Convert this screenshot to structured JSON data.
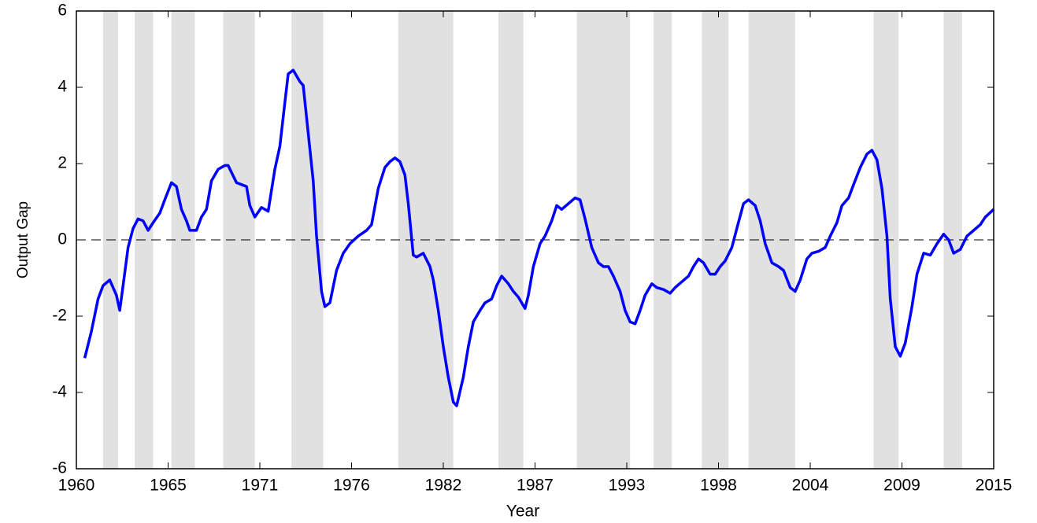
{
  "chart_data": {
    "type": "line",
    "x_label": "Year",
    "y_label": "Output Gap",
    "xlim": [
      1960,
      2015
    ],
    "ylim": [
      -6,
      6
    ],
    "xticks": [
      1960,
      {
        "value": 1965.5,
        "label": "1965"
      },
      1971,
      {
        "value": 1976.5,
        "label": "1976"
      },
      1982,
      {
        "value": 1987.5,
        "label": "1987"
      },
      1993,
      {
        "value": 1998.5,
        "label": "1998"
      },
      2004,
      {
        "value": 2009.5,
        "label": "2009"
      },
      2015
    ],
    "yticks": [
      -6,
      -4,
      -2,
      0,
      2,
      4,
      6
    ],
    "reference_line": 0,
    "shade_color": "#e1e1e1",
    "shaded_periods": [
      [
        1961.6,
        1962.5
      ],
      [
        1963.5,
        1964.6
      ],
      [
        1965.7,
        1967.1
      ],
      [
        1968.8,
        1970.7
      ],
      [
        1972.9,
        1974.8
      ],
      [
        1979.3,
        1982.6
      ],
      [
        1985.3,
        1986.8
      ],
      [
        1990.0,
        1993.2
      ],
      [
        1994.6,
        1995.7
      ],
      [
        1997.5,
        1999.1
      ],
      [
        2000.3,
        2003.1
      ],
      [
        2007.8,
        2009.3
      ],
      [
        2012.0,
        2013.1
      ]
    ],
    "x": [
      1960.5,
      1960.9,
      1961.3,
      1961.6,
      1962.0,
      1962.4,
      1962.6,
      1962.8,
      1963.1,
      1963.4,
      1963.7,
      1964.0,
      1964.3,
      1964.6,
      1965.0,
      1965.3,
      1965.7,
      1966.0,
      1966.3,
      1966.6,
      1966.8,
      1967.2,
      1967.5,
      1967.8,
      1968.1,
      1968.5,
      1968.9,
      1969.1,
      1969.6,
      1969.9,
      1970.2,
      1970.4,
      1970.7,
      1971.1,
      1971.5,
      1971.9,
      1972.2,
      1972.5,
      1972.7,
      1973.0,
      1973.4,
      1973.6,
      1973.9,
      1974.2,
      1974.4,
      1974.7,
      1974.9,
      1975.2,
      1975.6,
      1976.0,
      1976.4,
      1976.9,
      1977.4,
      1977.7,
      1978.1,
      1978.5,
      1978.8,
      1979.1,
      1979.4,
      1979.7,
      1979.9,
      1980.2,
      1980.4,
      1980.8,
      1981.2,
      1981.4,
      1981.7,
      1982.0,
      1982.3,
      1982.6,
      1982.8,
      1983.2,
      1983.5,
      1983.8,
      1984.2,
      1984.5,
      1984.9,
      1985.2,
      1985.5,
      1985.9,
      1986.2,
      1986.5,
      1986.9,
      1987.1,
      1987.4,
      1987.8,
      1988.1,
      1988.5,
      1988.8,
      1989.1,
      1989.5,
      1989.9,
      1990.2,
      1990.5,
      1990.9,
      1991.3,
      1991.6,
      1991.9,
      1992.2,
      1992.6,
      1992.9,
      1993.2,
      1993.5,
      1993.8,
      1994.1,
      1994.5,
      1994.8,
      1995.2,
      1995.6,
      1995.9,
      1996.3,
      1996.7,
      1997.0,
      1997.3,
      1997.6,
      1998.0,
      1998.3,
      1998.6,
      1998.9,
      1999.3,
      1999.6,
      2000.0,
      2000.3,
      2000.7,
      2001.0,
      2001.3,
      2001.7,
      2002.1,
      2002.4,
      2002.8,
      2003.1,
      2003.4,
      2003.8,
      2004.1,
      2004.5,
      2004.9,
      2005.2,
      2005.6,
      2005.9,
      2006.3,
      2006.6,
      2007.0,
      2007.4,
      2007.7,
      2008.0,
      2008.3,
      2008.6,
      2008.8,
      2009.1,
      2009.4,
      2009.7,
      2010.1,
      2010.4,
      2010.8,
      2011.2,
      2011.6,
      2012.0,
      2012.3,
      2012.6,
      2013.0,
      2013.4,
      2013.8,
      2014.2,
      2014.5,
      2015.0
    ],
    "series": [
      {
        "color": "#0000ff",
        "values": [
          -3.1,
          -2.4,
          -1.55,
          -1.2,
          -1.05,
          -1.45,
          -1.85,
          -1.2,
          -0.2,
          0.3,
          0.55,
          0.5,
          0.25,
          0.45,
          0.7,
          1.05,
          1.5,
          1.4,
          0.8,
          0.5,
          0.25,
          0.25,
          0.6,
          0.8,
          1.55,
          1.85,
          1.95,
          1.95,
          1.5,
          1.45,
          1.4,
          0.9,
          0.6,
          0.85,
          0.75,
          1.85,
          2.45,
          3.6,
          4.35,
          4.45,
          4.15,
          4.05,
          2.8,
          1.55,
          0.1,
          -1.35,
          -1.75,
          -1.65,
          -0.8,
          -0.35,
          -0.1,
          0.1,
          0.25,
          0.4,
          1.35,
          1.9,
          2.05,
          2.15,
          2.05,
          1.7,
          0.95,
          -0.4,
          -0.45,
          -0.35,
          -0.7,
          -1.05,
          -1.85,
          -2.8,
          -3.6,
          -4.25,
          -4.35,
          -3.6,
          -2.8,
          -2.15,
          -1.85,
          -1.65,
          -1.55,
          -1.2,
          -0.95,
          -1.15,
          -1.35,
          -1.5,
          -1.8,
          -1.45,
          -0.7,
          -0.1,
          0.1,
          0.5,
          0.9,
          0.8,
          0.95,
          1.1,
          1.05,
          0.55,
          -0.2,
          -0.6,
          -0.7,
          -0.7,
          -0.95,
          -1.35,
          -1.85,
          -2.15,
          -2.2,
          -1.85,
          -1.45,
          -1.15,
          -1.25,
          -1.3,
          -1.4,
          -1.25,
          -1.1,
          -0.95,
          -0.7,
          -0.5,
          -0.6,
          -0.9,
          -0.9,
          -0.7,
          -0.55,
          -0.2,
          0.3,
          0.95,
          1.05,
          0.9,
          0.5,
          -0.1,
          -0.6,
          -0.7,
          -0.8,
          -1.25,
          -1.35,
          -1.05,
          -0.5,
          -0.35,
          -0.3,
          -0.2,
          0.1,
          0.45,
          0.9,
          1.1,
          1.45,
          1.9,
          2.25,
          2.35,
          2.1,
          1.35,
          0.1,
          -1.55,
          -2.8,
          -3.05,
          -2.7,
          -1.75,
          -0.9,
          -0.35,
          -0.4,
          -0.1,
          0.15,
          0,
          -0.35,
          -0.25,
          0.1,
          0.25,
          0.4,
          0.6,
          0.8
        ]
      }
    ]
  }
}
